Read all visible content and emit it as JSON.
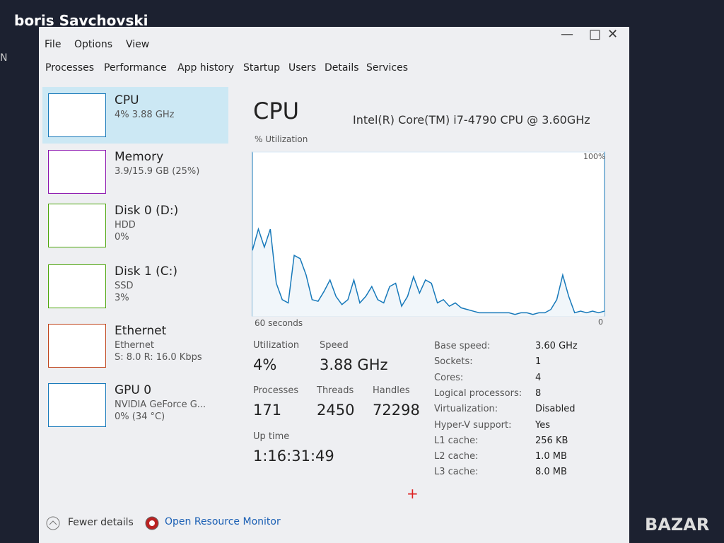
{
  "overlay": {
    "author": "boris Savchovski",
    "edge_letter": "N",
    "watermark": "BAZAR"
  },
  "menu": [
    "File",
    "Options",
    "View"
  ],
  "tabs": [
    "Processes",
    "Performance",
    "App history",
    "Startup",
    "Users",
    "Details",
    "Services"
  ],
  "sidebar": [
    {
      "title": "CPU",
      "lines": [
        "4% 3.88 GHz"
      ],
      "color": "#1779ba"
    },
    {
      "title": "Memory",
      "lines": [
        "3.9/15.9 GB (25%)"
      ],
      "color": "#8b12ae"
    },
    {
      "title": "Disk 0 (D:)",
      "lines": [
        "HDD",
        "0%"
      ],
      "color": "#4da60c"
    },
    {
      "title": "Disk 1 (C:)",
      "lines": [
        "SSD",
        "3%"
      ],
      "color": "#4da60c"
    },
    {
      "title": "Ethernet",
      "lines": [
        "Ethernet",
        "S: 8.0 R: 16.0 Kbps"
      ],
      "color": "#c0441c"
    },
    {
      "title": "GPU 0",
      "lines": [
        "NVIDIA GeForce G...",
        "0% (34 °C)"
      ],
      "color": "#1779ba"
    }
  ],
  "main": {
    "title": "CPU",
    "processor": "Intel(R) Core(TM) i7-4790 CPU @ 3.60GHz",
    "graph": {
      "label": "% Utilization",
      "x_label": "60 seconds",
      "color": "#1779ba",
      "ylim": [
        0,
        100
      ],
      "yticks": [
        0,
        {
          "value": 100,
          "label": "100%"
        }
      ],
      "values": [
        40,
        53,
        42,
        53,
        20,
        10,
        8,
        37,
        35,
        25,
        10,
        9,
        15,
        22,
        12,
        7,
        10,
        22,
        8,
        12,
        18,
        10,
        8,
        18,
        20,
        6,
        12,
        24,
        14,
        22,
        20,
        8,
        10,
        6,
        8,
        5,
        4,
        3,
        2,
        2,
        2,
        2,
        2,
        2,
        1,
        2,
        2,
        1,
        2,
        2,
        4,
        10,
        25,
        12,
        2,
        3,
        2,
        3,
        2,
        3
      ]
    },
    "stats": [
      {
        "label": "Utilization",
        "value": "4%"
      },
      {
        "label": "Speed",
        "value": "3.88 GHz"
      },
      {
        "label": "Processes",
        "value": "171"
      },
      {
        "label": "Threads",
        "value": "2450"
      },
      {
        "label": "Handles",
        "value": "72298"
      },
      {
        "label": "Up time",
        "value": "1:16:31:49"
      }
    ],
    "details": [
      [
        "Base speed:",
        "3.60 GHz"
      ],
      [
        "Sockets:",
        "1"
      ],
      [
        "Cores:",
        "4"
      ],
      [
        "Logical processors:",
        "8"
      ],
      [
        "Virtualization:",
        "Disabled"
      ],
      [
        "Hyper-V support:",
        "Yes"
      ],
      [
        "L1 cache:",
        "256 KB"
      ],
      [
        "L2 cache:",
        "1.0 MB"
      ],
      [
        "L3 cache:",
        "8.0 MB"
      ]
    ]
  },
  "footer": {
    "fewer": "Fewer details",
    "monitor": "Open Resource Monitor"
  }
}
